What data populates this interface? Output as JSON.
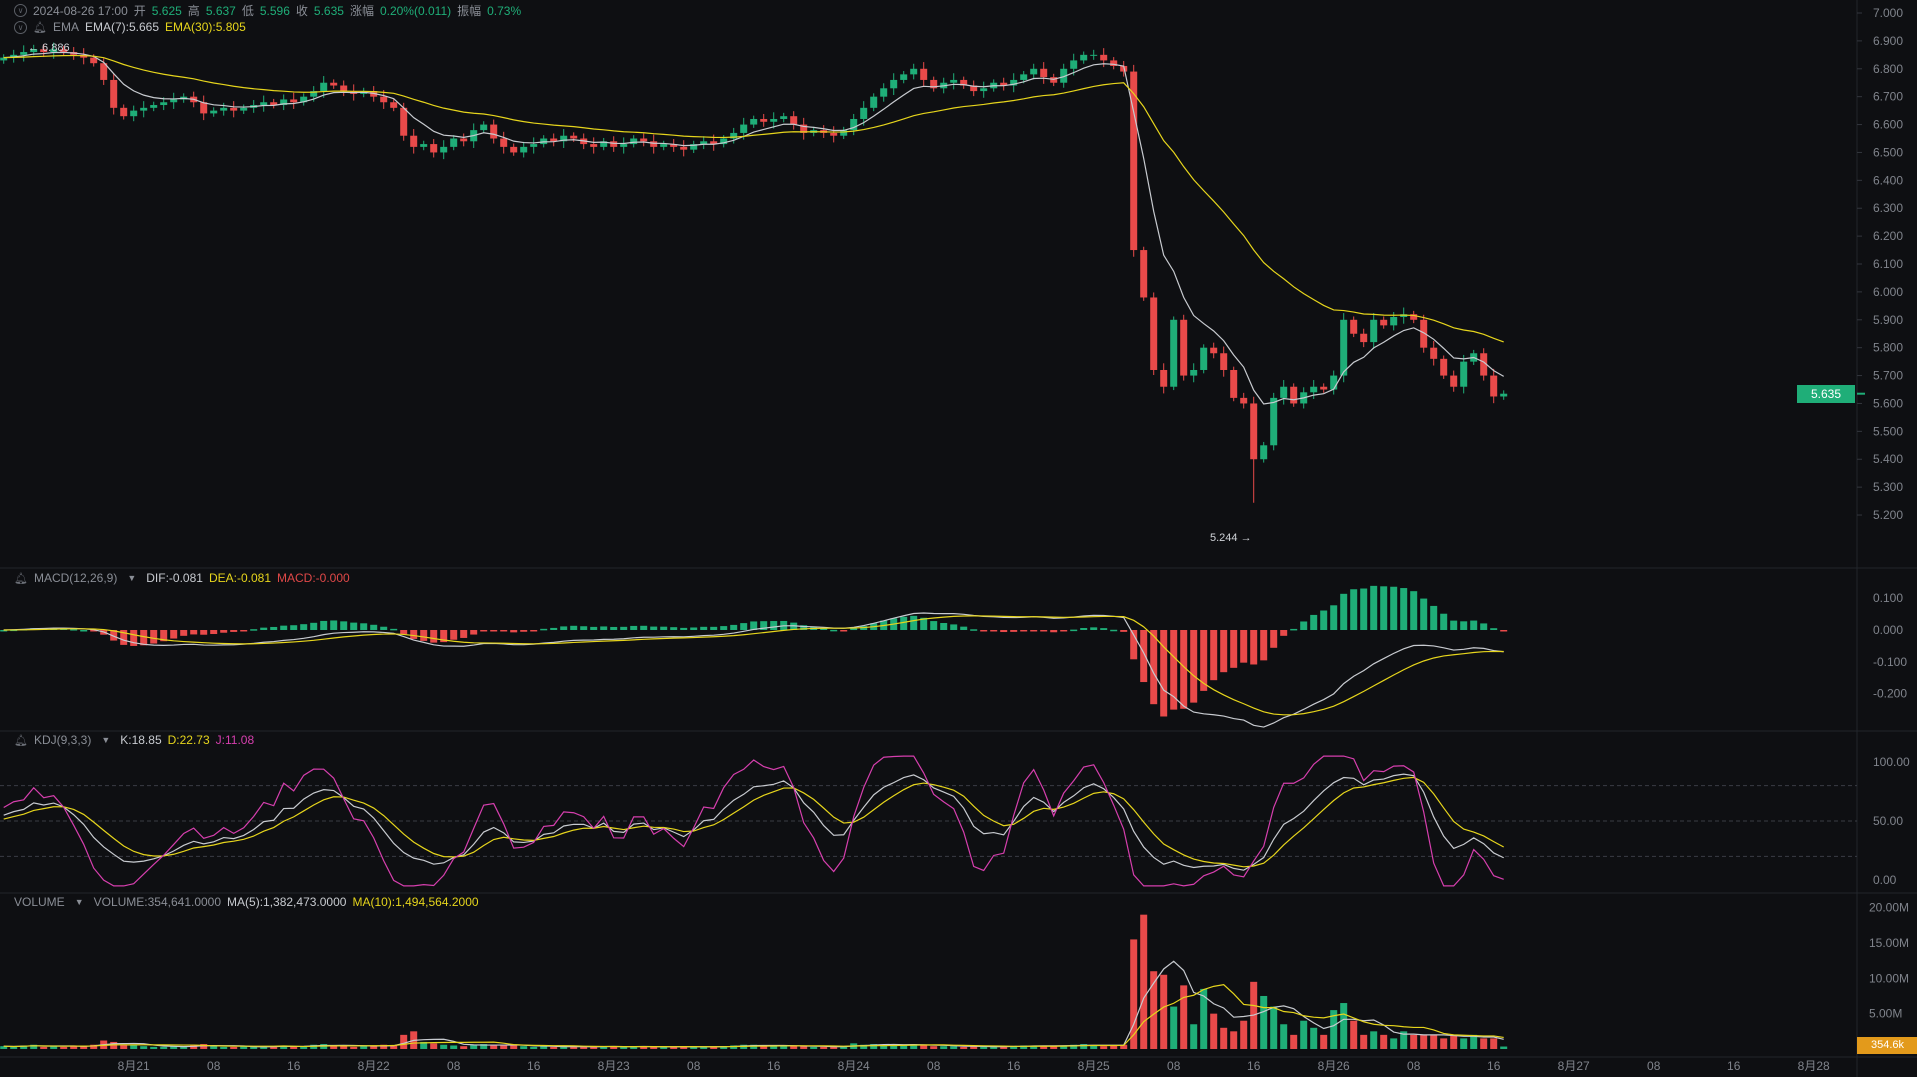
{
  "header": {
    "datetime": "2024-08-26 17:00",
    "open_label": "开",
    "open": "5.625",
    "high_label": "高",
    "high": "5.637",
    "low_label": "低",
    "low": "5.596",
    "close_label": "收",
    "close": "5.635",
    "change_label": "涨幅",
    "change": "0.20%(0.011)",
    "amp_label": "振幅",
    "amp": "0.73%"
  },
  "ema": {
    "name": "EMA",
    "ema7": "EMA(7):5.665",
    "ema30": "EMA(30):5.805"
  },
  "macd": {
    "name": "MACD(12,26,9)",
    "dif": "DIF:-0.081",
    "dea": "DEA:-0.081",
    "macd": "MACD:-0.000"
  },
  "kdj": {
    "name": "KDJ(9,3,3)",
    "k": "K:18.85",
    "d": "D:22.73",
    "j": "J:11.08"
  },
  "volume": {
    "name": "VOLUME",
    "vol": "VOLUME:354,641.0000",
    "ma5": "MA(5):1,382,473.0000",
    "ma10": "MA(10):1,494,564.2000"
  },
  "colors": {
    "up": "#1fae78",
    "down": "#e84a4a",
    "ema7": "#c8cbd0",
    "ema30": "#e6d51c",
    "j": "#d63fae",
    "bg": "#0e0f12",
    "vol_tag": "#e39a1b"
  },
  "chart_data": [
    {
      "type": "candlestick",
      "interval": "1h",
      "start": "2024-08-20 11:00",
      "end": "2024-08-26 17:00",
      "price_ticks": [
        "7.000",
        "6.900",
        "6.800",
        "6.700",
        "6.600",
        "6.500",
        "6.400",
        "6.300",
        "6.200",
        "6.100",
        "6.000",
        "5.900",
        "5.800",
        "5.700",
        "5.600",
        "5.500",
        "5.400",
        "5.300",
        "5.200"
      ],
      "ylim": [
        5.15,
        7.05
      ],
      "current_price": "5.635",
      "annotations": [
        {
          "text": "← 6.886",
          "value": 6.886,
          "index": 3
        },
        {
          "text": "5.244 →",
          "value": 5.244,
          "index": 125
        }
      ],
      "close": [
        6.84,
        6.85,
        6.86,
        6.87,
        6.86,
        6.87,
        6.86,
        6.85,
        6.84,
        6.82,
        6.76,
        6.66,
        6.63,
        6.65,
        6.66,
        6.67,
        6.68,
        6.69,
        6.7,
        6.68,
        6.64,
        6.65,
        6.66,
        6.65,
        6.66,
        6.67,
        6.68,
        6.67,
        6.69,
        6.68,
        6.7,
        6.72,
        6.75,
        6.74,
        6.72,
        6.71,
        6.72,
        6.7,
        6.68,
        6.66,
        6.56,
        6.52,
        6.53,
        6.5,
        6.52,
        6.55,
        6.54,
        6.58,
        6.6,
        6.55,
        6.52,
        6.5,
        6.52,
        6.53,
        6.55,
        6.54,
        6.56,
        6.55,
        6.53,
        6.52,
        6.54,
        6.52,
        6.53,
        6.55,
        6.54,
        6.52,
        6.53,
        6.52,
        6.51,
        6.53,
        6.54,
        6.53,
        6.55,
        6.57,
        6.6,
        6.62,
        6.61,
        6.62,
        6.63,
        6.6,
        6.57,
        6.58,
        6.57,
        6.56,
        6.58,
        6.62,
        6.66,
        6.7,
        6.73,
        6.76,
        6.78,
        6.8,
        6.76,
        6.73,
        6.75,
        6.76,
        6.74,
        6.72,
        6.73,
        6.75,
        6.74,
        6.76,
        6.78,
        6.8,
        6.77,
        6.75,
        6.8,
        6.83,
        6.85,
        6.85,
        6.83,
        6.81,
        6.79,
        6.15,
        5.98,
        5.72,
        5.66,
        5.9,
        5.7,
        5.72,
        5.8,
        5.78,
        5.72,
        5.62,
        5.6,
        5.4,
        5.45,
        5.62,
        5.66,
        5.6,
        5.64,
        5.66,
        5.65,
        5.7,
        5.9,
        5.85,
        5.82,
        5.9,
        5.88,
        5.91,
        5.92,
        5.9,
        5.8,
        5.76,
        5.7,
        5.66,
        5.75,
        5.78,
        5.7,
        5.625,
        5.635
      ]
    },
    {
      "type": "macd",
      "ticks": [
        "0.100",
        "0.000",
        "-0.100",
        "-0.200"
      ]
    },
    {
      "type": "kdj",
      "ticks": [
        "100.00",
        "50.00",
        "0.00"
      ],
      "levels": [
        80,
        50,
        20
      ]
    },
    {
      "type": "bar",
      "name": "VOLUME",
      "unit": "M",
      "ticks": [
        "20.00M",
        "15.00M",
        "10.00M",
        "5.00M"
      ],
      "current": "354.6k",
      "values": [
        0.4,
        0.3,
        0.5,
        0.6,
        0.3,
        0.4,
        0.3,
        0.5,
        0.4,
        0.6,
        1.2,
        1.0,
        0.6,
        0.5,
        0.4,
        0.3,
        0.3,
        0.4,
        0.3,
        0.6,
        0.7,
        0.4,
        0.3,
        0.3,
        0.4,
        0.3,
        0.3,
        0.4,
        0.5,
        0.3,
        0.4,
        0.6,
        0.7,
        0.5,
        0.4,
        0.3,
        0.4,
        0.5,
        0.6,
        0.5,
        2.0,
        2.5,
        1.0,
        0.8,
        0.6,
        0.5,
        0.4,
        0.6,
        0.7,
        0.6,
        0.5,
        0.5,
        0.4,
        0.3,
        0.4,
        0.3,
        0.3,
        0.4,
        0.3,
        0.3,
        0.4,
        0.4,
        0.3,
        0.3,
        0.4,
        0.3,
        0.3,
        0.3,
        0.4,
        0.3,
        0.3,
        0.3,
        0.4,
        0.5,
        0.6,
        0.6,
        0.4,
        0.4,
        0.5,
        0.4,
        0.4,
        0.3,
        0.3,
        0.3,
        0.4,
        0.8,
        0.6,
        0.7,
        0.6,
        0.5,
        0.6,
        0.7,
        0.5,
        0.4,
        0.4,
        0.4,
        0.3,
        0.4,
        0.3,
        0.3,
        0.4,
        0.4,
        0.5,
        0.5,
        0.4,
        0.4,
        0.5,
        0.6,
        0.7,
        0.5,
        0.4,
        0.5,
        0.6,
        15.5,
        19.0,
        11.0,
        10.5,
        6.0,
        9.0,
        3.5,
        8.5,
        5.0,
        3.0,
        2.5,
        4.0,
        9.5,
        7.5,
        6.0,
        3.5,
        2.0,
        4.0,
        3.0,
        2.0,
        5.5,
        6.5,
        4.0,
        2.0,
        2.5,
        2.0,
        1.5,
        2.5,
        2.0,
        2.0,
        2.0,
        1.5,
        2.0,
        1.5,
        2.0,
        1.5,
        1.5,
        0.35
      ]
    },
    {
      "type": "time_axis",
      "labels": [
        {
          "t": "8月21",
          "i": 13
        },
        {
          "t": "08",
          "i": 21
        },
        {
          "t": "16",
          "i": 29
        },
        {
          "t": "8月22",
          "i": 37
        },
        {
          "t": "08",
          "i": 45
        },
        {
          "t": "16",
          "i": 53
        },
        {
          "t": "8月23",
          "i": 61
        },
        {
          "t": "08",
          "i": 69
        },
        {
          "t": "16",
          "i": 77
        },
        {
          "t": "8月24",
          "i": 85
        },
        {
          "t": "08",
          "i": 93
        },
        {
          "t": "16",
          "i": 101
        },
        {
          "t": "8月25",
          "i": 109
        },
        {
          "t": "08",
          "i": 117
        },
        {
          "t": "16",
          "i": 125
        },
        {
          "t": "8月26",
          "i": 133
        },
        {
          "t": "08",
          "i": 141
        },
        {
          "t": "16",
          "i": 149
        },
        {
          "t": "8月27",
          "i": 157
        },
        {
          "t": "08",
          "i": 165
        },
        {
          "t": "16",
          "i": 173
        },
        {
          "t": "8月28",
          "i": 181
        }
      ]
    }
  ]
}
